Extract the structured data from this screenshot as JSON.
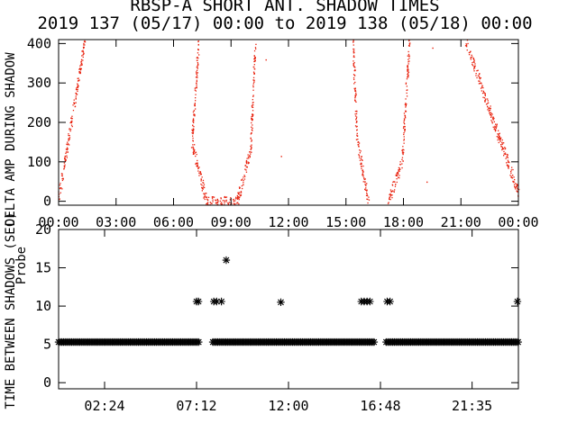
{
  "chart_data": [
    {
      "type": "scatter",
      "title": "RBSP-A SHORT ANT. SHADOW TIMES",
      "subtitle": "2019 137 (05/17) 00:00 to 2019 138 (05/18) 00:00",
      "ylabel_lines": [
        "AMP DURING SHADOW",
        "DELTA",
        "Probe"
      ],
      "xlim": [
        0,
        24
      ],
      "ylim": [
        -10,
        410
      ],
      "x_tick_labels": [
        "00:00",
        "03:00",
        "06:00",
        "09:00",
        "12:00",
        "15:00",
        "18:00",
        "21:00",
        "00:00"
      ],
      "x_tick_hours": [
        0,
        3,
        6,
        9,
        12,
        15,
        18,
        21,
        24
      ],
      "y_ticks": [
        0,
        100,
        200,
        300,
        400
      ],
      "color": "#e8200c",
      "series_segments": [
        {
          "x": [
            0.0,
            1.35
          ],
          "y": [
            10,
            410
          ]
        },
        {
          "x": [
            7.3,
            6.95,
            7.7,
            8.6
          ],
          "y": [
            410,
            150,
            0,
            0
          ]
        },
        {
          "x": [
            8.6,
            9.3
          ],
          "y": [
            0,
            0
          ]
        },
        {
          "x": [
            9.3,
            10.0
          ],
          "y": [
            0,
            130
          ]
        },
        {
          "x": [
            10.0,
            10.25
          ],
          "y": [
            130,
            410
          ]
        },
        {
          "x": [
            15.35,
            15.55,
            16.15
          ],
          "y": [
            410,
            160,
            0
          ]
        },
        {
          "x": [
            17.2,
            17.9
          ],
          "y": [
            0,
            100
          ]
        },
        {
          "x": [
            17.9,
            18.3
          ],
          "y": [
            100,
            410
          ]
        },
        {
          "x": [
            21.2,
            24.0
          ],
          "y": [
            410,
            20
          ]
        }
      ],
      "isolated_points": [
        {
          "x": 10.8,
          "y": 360
        },
        {
          "x": 11.6,
          "y": 115
        },
        {
          "x": 19.5,
          "y": 390
        },
        {
          "x": 19.2,
          "y": 50
        }
      ]
    },
    {
      "type": "scatter",
      "ylabel": "TIME BETWEEN SHADOWS (SEC)",
      "xlim": [
        0.0,
        24.0
      ],
      "ylim": [
        -0.8,
        20
      ],
      "x_tick_labels": [
        "02:24",
        "07:12",
        "12:00",
        "16:48",
        "21:35"
      ],
      "x_tick_hours": [
        2.4,
        7.2,
        12.0,
        16.8,
        21.583
      ],
      "y_ticks": [
        0,
        5,
        10,
        15,
        20
      ],
      "marker": "asterisk",
      "baseline_value": 5.3,
      "baseline_runs": [
        [
          0.0,
          7.35
        ],
        [
          8.05,
          16.5
        ],
        [
          17.1,
          24.0
        ]
      ],
      "points": [
        {
          "x": 7.2,
          "y": 10.6
        },
        {
          "x": 7.3,
          "y": 10.6
        },
        {
          "x": 8.1,
          "y": 10.6
        },
        {
          "x": 8.25,
          "y": 10.6
        },
        {
          "x": 8.5,
          "y": 10.6
        },
        {
          "x": 8.75,
          "y": 16.0
        },
        {
          "x": 11.6,
          "y": 10.5
        },
        {
          "x": 15.8,
          "y": 10.6
        },
        {
          "x": 15.95,
          "y": 10.6
        },
        {
          "x": 16.1,
          "y": 10.6
        },
        {
          "x": 16.25,
          "y": 10.6
        },
        {
          "x": 17.15,
          "y": 10.6
        },
        {
          "x": 17.3,
          "y": 10.6
        },
        {
          "x": 23.95,
          "y": 10.6
        }
      ]
    }
  ]
}
